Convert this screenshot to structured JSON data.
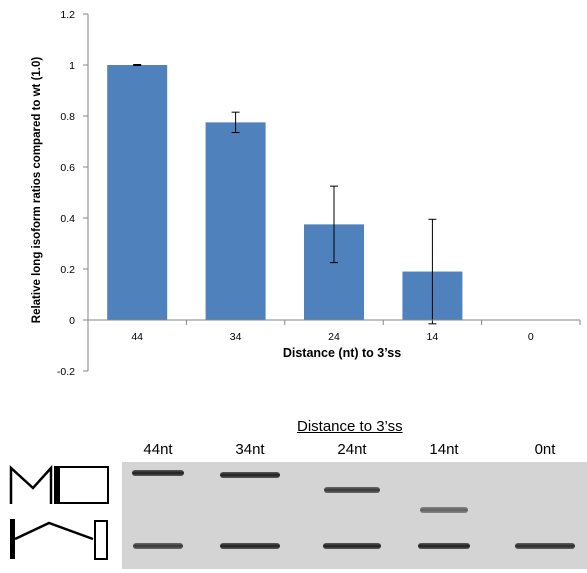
{
  "chart_data": {
    "type": "bar",
    "title": "",
    "xlabel": "Distance (nt) to 3’ss",
    "ylabel": "Relative long isoform ratios compared to wt (1.0)",
    "categories": [
      "44",
      "34",
      "24",
      "14",
      "0"
    ],
    "values": [
      1.0,
      0.775,
      0.375,
      0.19,
      0
    ],
    "error": [
      0.002,
      0.04,
      0.15,
      0.205,
      0
    ],
    "ylim": [
      -0.2,
      1.2
    ],
    "yticks": [
      "-0.2",
      "0",
      "0.2",
      "0.4",
      "0.6",
      "0.8",
      "1",
      "1.2"
    ],
    "bar_color": "#4f81bd",
    "grid": false,
    "legend": "none"
  },
  "gel": {
    "title": "Distance to 3’ss",
    "lanes": [
      "44nt",
      "34nt",
      "24nt",
      "14nt",
      "0nt"
    ],
    "long_band_levels": [
      1.0,
      1.0,
      0.8,
      0.45,
      0
    ],
    "short_band_levels": [
      0.8,
      1.0,
      1.0,
      1.0,
      0.9
    ]
  },
  "colors": {
    "bar": "#4f81bd",
    "gel_background": "#d4d4d4",
    "band": "#1e1e1e"
  }
}
